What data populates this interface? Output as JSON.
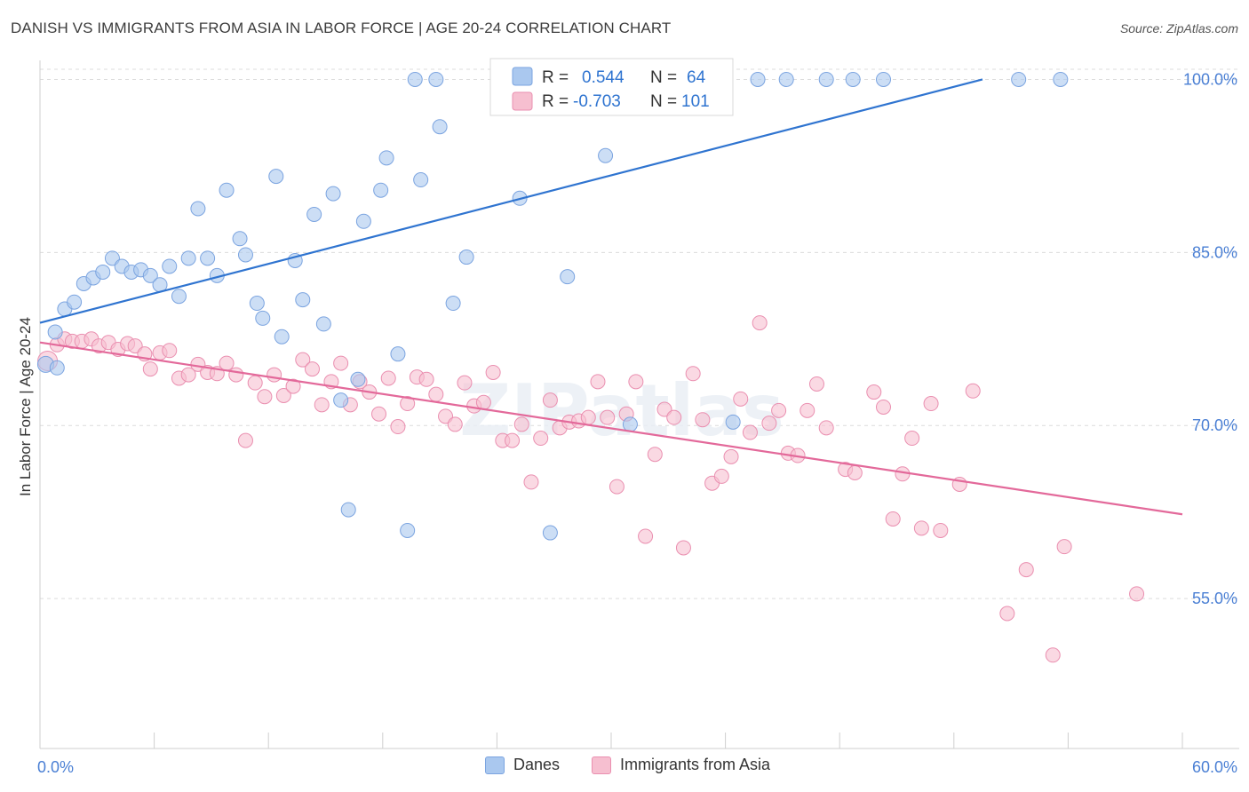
{
  "title": "DANISH VS IMMIGRANTS FROM ASIA IN LABOR FORCE | AGE 20-24 CORRELATION CHART",
  "source": "Source: ZipAtlas.com",
  "watermark": "ZIPatlas",
  "colors": {
    "blue_fill": "#aac8ef",
    "blue_stroke": "#7ba4e0",
    "blue_line": "#2f74d0",
    "pink_fill": "#f6bfd0",
    "pink_stroke": "#ea8fb0",
    "pink_line": "#e3699a",
    "axis_text": "#4a7fd4",
    "grid": "#dcdcdc"
  },
  "legend_top": {
    "rows": [
      {
        "r_label": "R =",
        "r_value": "0.544",
        "n_label": "N =",
        "n_value": "64"
      },
      {
        "r_label": "R =",
        "r_value": "-0.703",
        "n_label": "N =",
        "n_value": "101"
      }
    ]
  },
  "legend_bottom": {
    "danes": "Danes",
    "asia": "Immigrants from Asia"
  },
  "chart_data": {
    "type": "scatter",
    "title": "DANISH VS IMMIGRANTS FROM ASIA IN LABOR FORCE | AGE 20-24 CORRELATION CHART",
    "xlabel": "",
    "ylabel": "In Labor Force | Age 20-24",
    "xlim": [
      0,
      60
    ],
    "ylim": [
      42,
      101.5
    ],
    "x_tick_labels": [
      "0.0%",
      "60.0%"
    ],
    "y_ticks": [
      55,
      70,
      85,
      100
    ],
    "y_tick_labels": [
      "55.0%",
      "70.0%",
      "85.0%",
      "100.0%"
    ],
    "grid": true,
    "legend_position": "top-center",
    "series": [
      {
        "name": "Danes",
        "color": "blue",
        "r": 0.544,
        "n": 64,
        "trend": {
          "x0": 0,
          "y0": 78.9,
          "x1": 49.5,
          "y1": 100.0
        },
        "points": [
          [
            0.3,
            75.3
          ],
          [
            0.8,
            78.1
          ],
          [
            1.3,
            80.1
          ],
          [
            1.8,
            80.7
          ],
          [
            2.3,
            82.3
          ],
          [
            2.8,
            82.8
          ],
          [
            3.3,
            83.3
          ],
          [
            3.8,
            84.5
          ],
          [
            4.3,
            83.8
          ],
          [
            4.8,
            83.3
          ],
          [
            5.3,
            83.5
          ],
          [
            5.8,
            83.0
          ],
          [
            6.3,
            82.2
          ],
          [
            6.8,
            83.8
          ],
          [
            7.3,
            81.2
          ],
          [
            7.8,
            84.5
          ],
          [
            8.3,
            88.8
          ],
          [
            8.8,
            84.5
          ],
          [
            9.3,
            83.0
          ],
          [
            9.8,
            90.4
          ],
          [
            10.5,
            86.2
          ],
          [
            10.8,
            84.8
          ],
          [
            11.4,
            80.6
          ],
          [
            11.7,
            79.3
          ],
          [
            12.4,
            91.6
          ],
          [
            12.7,
            77.7
          ],
          [
            13.4,
            84.3
          ],
          [
            13.8,
            80.9
          ],
          [
            14.4,
            88.3
          ],
          [
            14.9,
            78.8
          ],
          [
            15.4,
            90.1
          ],
          [
            15.8,
            72.2
          ],
          [
            16.2,
            62.7
          ],
          [
            16.7,
            74.0
          ],
          [
            17.0,
            87.7
          ],
          [
            17.9,
            90.4
          ],
          [
            18.2,
            93.2
          ],
          [
            18.8,
            76.2
          ],
          [
            19.3,
            60.9
          ],
          [
            19.7,
            100.0
          ],
          [
            20.0,
            91.3
          ],
          [
            20.8,
            100.0
          ],
          [
            21.0,
            95.9
          ],
          [
            21.7,
            80.6
          ],
          [
            22.4,
            84.6
          ],
          [
            24.3,
            100.0
          ],
          [
            25.2,
            89.7
          ],
          [
            26.8,
            60.7
          ],
          [
            27.7,
            82.9
          ],
          [
            28.4,
            100.0
          ],
          [
            29.7,
            93.4
          ],
          [
            31.0,
            70.1
          ],
          [
            32.4,
            100.0
          ],
          [
            35.1,
            100.0
          ],
          [
            36.4,
            70.3
          ],
          [
            37.7,
            100.0
          ],
          [
            39.2,
            100.0
          ],
          [
            41.3,
            100.0
          ],
          [
            42.7,
            100.0
          ],
          [
            44.3,
            100.0
          ],
          [
            51.4,
            100.0
          ],
          [
            53.6,
            100.0
          ],
          [
            0.9,
            75.0
          ],
          [
            30.2,
            100.0
          ]
        ]
      },
      {
        "name": "Immigrants from Asia",
        "color": "pink",
        "r": -0.703,
        "n": 101,
        "trend": {
          "x0": 0,
          "y0": 77.2,
          "x1": 60,
          "y1": 62.3
        },
        "points": [
          [
            0.4,
            75.6
          ],
          [
            0.9,
            77.0
          ],
          [
            1.3,
            77.5
          ],
          [
            1.7,
            77.3
          ],
          [
            2.2,
            77.3
          ],
          [
            2.7,
            77.5
          ],
          [
            3.1,
            76.9
          ],
          [
            3.6,
            77.2
          ],
          [
            4.1,
            76.6
          ],
          [
            4.6,
            77.1
          ],
          [
            5.0,
            76.9
          ],
          [
            5.5,
            76.2
          ],
          [
            5.8,
            74.9
          ],
          [
            6.3,
            76.3
          ],
          [
            6.8,
            76.5
          ],
          [
            7.3,
            74.1
          ],
          [
            7.8,
            74.4
          ],
          [
            8.3,
            75.3
          ],
          [
            8.8,
            74.6
          ],
          [
            9.3,
            74.5
          ],
          [
            9.8,
            75.4
          ],
          [
            10.3,
            74.4
          ],
          [
            10.8,
            68.7
          ],
          [
            11.3,
            73.7
          ],
          [
            11.8,
            72.5
          ],
          [
            12.3,
            74.4
          ],
          [
            12.8,
            72.6
          ],
          [
            13.3,
            73.4
          ],
          [
            13.8,
            75.7
          ],
          [
            14.3,
            74.9
          ],
          [
            14.8,
            71.8
          ],
          [
            15.3,
            73.8
          ],
          [
            15.8,
            75.4
          ],
          [
            16.3,
            71.8
          ],
          [
            16.8,
            73.8
          ],
          [
            17.3,
            72.9
          ],
          [
            17.8,
            71.0
          ],
          [
            18.3,
            74.1
          ],
          [
            18.8,
            69.9
          ],
          [
            19.3,
            71.9
          ],
          [
            19.8,
            74.2
          ],
          [
            20.3,
            74.0
          ],
          [
            20.8,
            72.7
          ],
          [
            21.3,
            70.8
          ],
          [
            21.8,
            70.1
          ],
          [
            22.3,
            73.7
          ],
          [
            22.8,
            71.7
          ],
          [
            23.3,
            72.0
          ],
          [
            23.8,
            74.6
          ],
          [
            24.3,
            68.7
          ],
          [
            24.8,
            68.7
          ],
          [
            25.3,
            70.1
          ],
          [
            25.8,
            65.1
          ],
          [
            26.3,
            68.9
          ],
          [
            26.8,
            72.2
          ],
          [
            27.3,
            69.8
          ],
          [
            27.8,
            70.3
          ],
          [
            28.3,
            70.4
          ],
          [
            28.8,
            70.7
          ],
          [
            29.3,
            73.8
          ],
          [
            29.8,
            70.7
          ],
          [
            30.3,
            64.7
          ],
          [
            30.8,
            71.0
          ],
          [
            31.3,
            73.8
          ],
          [
            31.8,
            60.4
          ],
          [
            32.3,
            67.5
          ],
          [
            32.8,
            71.4
          ],
          [
            33.3,
            70.7
          ],
          [
            33.8,
            59.4
          ],
          [
            34.3,
            74.5
          ],
          [
            34.8,
            70.5
          ],
          [
            35.3,
            65.0
          ],
          [
            35.8,
            65.6
          ],
          [
            36.3,
            67.3
          ],
          [
            36.8,
            72.3
          ],
          [
            37.3,
            69.4
          ],
          [
            37.8,
            78.9
          ],
          [
            38.3,
            70.2
          ],
          [
            38.8,
            71.3
          ],
          [
            39.3,
            67.6
          ],
          [
            39.8,
            67.4
          ],
          [
            40.3,
            71.3
          ],
          [
            40.8,
            73.6
          ],
          [
            41.3,
            69.8
          ],
          [
            42.3,
            66.2
          ],
          [
            42.8,
            65.9
          ],
          [
            43.8,
            72.9
          ],
          [
            44.3,
            71.6
          ],
          [
            44.8,
            61.9
          ],
          [
            45.3,
            65.8
          ],
          [
            45.8,
            68.9
          ],
          [
            46.3,
            61.1
          ],
          [
            46.8,
            71.9
          ],
          [
            47.3,
            60.9
          ],
          [
            48.3,
            64.9
          ],
          [
            49.0,
            73.0
          ],
          [
            50.8,
            53.7
          ],
          [
            51.8,
            57.5
          ],
          [
            53.2,
            50.1
          ],
          [
            53.8,
            59.5
          ],
          [
            57.6,
            55.4
          ]
        ]
      }
    ]
  }
}
